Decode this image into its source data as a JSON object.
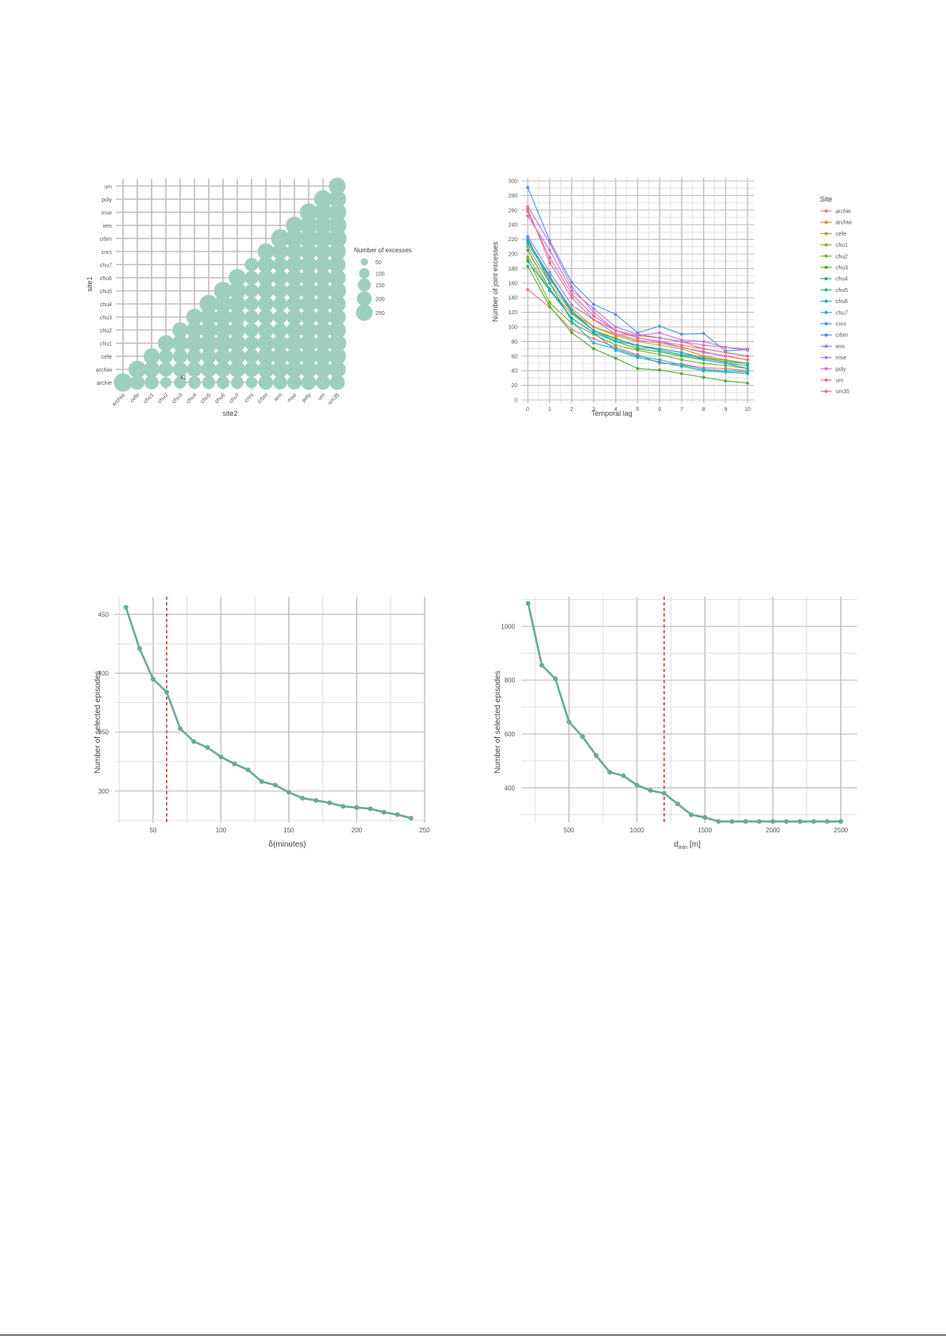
{
  "colors": {
    "teal": "#6aaa96",
    "bubble": "#9ecfbd",
    "grid_major": "#bdbdbd",
    "grid_minor": "#dcdcdc",
    "threshold": "#d23a3a",
    "text": "#555555"
  },
  "chart_data": [
    {
      "type": "scatter",
      "title": "",
      "xlabel": "site2",
      "ylabel": "site1",
      "sites_x": [
        "archiw",
        "cefe",
        "chu1",
        "chu2",
        "chu3",
        "chu4",
        "chu5",
        "chu6",
        "chu7",
        "cnrs",
        "crbm",
        "iem",
        "mse",
        "poly",
        "um",
        "um35"
      ],
      "sites_y": [
        "archie",
        "archiw",
        "cefe",
        "chu1",
        "chu2",
        "chu3",
        "chu4",
        "chu5",
        "chu6",
        "chu7",
        "cnrs",
        "crbm",
        "iem",
        "mse",
        "poly",
        "um"
      ],
      "annotation": "41",
      "legend_title": "Number of excesses",
      "legend_values": [
        50,
        100,
        150,
        200,
        250
      ],
      "grid": true,
      "values": [
        [
          262,
          165,
          150,
          90,
          115,
          120,
          130,
          125,
          120,
          100,
          165,
          150,
          160,
          170,
          160,
          175
        ],
        [
          null,
          232,
          200,
          165,
          168,
          175,
          190,
          190,
          200,
          178,
          212,
          215,
          220,
          222,
          212,
          220
        ],
        [
          null,
          null,
          200,
          155,
          160,
          170,
          178,
          185,
          200,
          165,
          220,
          210,
          220,
          225,
          215,
          230
        ],
        [
          null,
          null,
          null,
          202,
          210,
          225,
          240,
          235,
          215,
          160,
          220,
          200,
          220,
          235,
          205,
          245
        ],
        [
          null,
          null,
          null,
          null,
          188,
          200,
          225,
          210,
          200,
          150,
          185,
          160,
          205,
          210,
          200,
          225
        ],
        [
          null,
          null,
          null,
          null,
          null,
          210,
          228,
          220,
          210,
          150,
          185,
          150,
          190,
          200,
          195,
          220
        ],
        [
          null,
          null,
          null,
          null,
          null,
          null,
          255,
          240,
          215,
          150,
          180,
          160,
          190,
          215,
          200,
          220
        ],
        [
          null,
          null,
          null,
          null,
          null,
          null,
          null,
          252,
          230,
          155,
          205,
          180,
          210,
          225,
          205,
          235
        ],
        [
          null,
          null,
          null,
          null,
          null,
          null,
          null,
          null,
          232,
          150,
          205,
          180,
          210,
          220,
          200,
          220
        ],
        [
          null,
          null,
          null,
          null,
          null,
          null,
          null,
          null,
          null,
          140,
          200,
          170,
          210,
          210,
          195,
          215
        ],
        [
          null,
          null,
          null,
          null,
          null,
          null,
          null,
          null,
          null,
          null,
          210,
          190,
          205,
          215,
          195,
          225
        ],
        [
          null,
          null,
          null,
          null,
          null,
          null,
          null,
          null,
          null,
          null,
          null,
          260,
          255,
          265,
          255,
          265
        ],
        [
          null,
          null,
          null,
          null,
          null,
          null,
          null,
          null,
          null,
          null,
          null,
          null,
          232,
          255,
          240,
          255
        ],
        [
          null,
          null,
          null,
          null,
          null,
          null,
          null,
          null,
          null,
          null,
          null,
          null,
          null,
          245,
          255,
          245
        ],
        [
          null,
          null,
          null,
          null,
          null,
          null,
          null,
          null,
          null,
          null,
          null,
          null,
          null,
          null,
          245,
          235
        ],
        [
          null,
          null,
          null,
          null,
          null,
          null,
          null,
          null,
          null,
          null,
          null,
          null,
          null,
          null,
          null,
          215
        ]
      ]
    },
    {
      "type": "line",
      "title": "",
      "xlabel": "Temporal lag",
      "ylabel": "Number of joint excesses",
      "legend_title": "Site",
      "x": [
        0,
        1,
        2,
        3,
        4,
        5,
        6,
        7,
        8,
        9,
        10
      ],
      "xlim": [
        0,
        10
      ],
      "ylim": [
        0,
        300
      ],
      "yticks": [
        0,
        20,
        40,
        60,
        80,
        100,
        120,
        140,
        160,
        180,
        200,
        220,
        240,
        260,
        280,
        300
      ],
      "grid": true,
      "series": [
        {
          "name": "archie",
          "color": "#e8777b",
          "values": [
            151,
            127,
            96,
            84,
            72,
            62,
            50,
            49,
            44,
            43,
            40
          ]
        },
        {
          "name": "archiw",
          "color": "#dd8a40",
          "values": [
            218,
            165,
            125,
            100,
            90,
            88,
            85,
            80,
            70,
            65,
            60
          ]
        },
        {
          "name": "cefe",
          "color": "#c09a2e",
          "values": [
            210,
            160,
            120,
            100,
            88,
            80,
            75,
            70,
            60,
            55,
            50
          ]
        },
        {
          "name": "chu1",
          "color": "#9faa26",
          "values": [
            196,
            150,
            118,
            95,
            85,
            72,
            70,
            65,
            58,
            54,
            50
          ]
        },
        {
          "name": "chu2",
          "color": "#7ab02c",
          "values": [
            193,
            133,
            105,
            90,
            75,
            68,
            62,
            55,
            50,
            47,
            43
          ]
        },
        {
          "name": "chu3",
          "color": "#52a83c",
          "values": [
            183,
            128,
            92,
            70,
            57,
            43,
            41,
            36,
            31,
            26,
            23
          ]
        },
        {
          "name": "chu4",
          "color": "#2aad63",
          "values": [
            205,
            152,
            112,
            92,
            80,
            70,
            66,
            60,
            55,
            50,
            47
          ]
        },
        {
          "name": "chu5",
          "color": "#1fb28e",
          "values": [
            218,
            170,
            122,
            95,
            83,
            75,
            68,
            62,
            57,
            52,
            50
          ]
        },
        {
          "name": "chu6",
          "color": "#18b0ae",
          "values": [
            190,
            150,
            112,
            92,
            68,
            58,
            52,
            46,
            40,
            38,
            36
          ]
        },
        {
          "name": "chu7",
          "color": "#20acc8",
          "values": [
            222,
            160,
            108,
            78,
            70,
            60,
            55,
            48,
            42,
            40,
            38
          ]
        },
        {
          "name": "cnrs",
          "color": "#30a2dd",
          "values": [
            214,
            168,
            120,
            95,
            80,
            75,
            70,
            65,
            55,
            50,
            43
          ]
        },
        {
          "name": "crbm",
          "color": "#4a92e8",
          "values": [
            291,
            218,
            161,
            131,
            117,
            92,
            101,
            90,
            91,
            67,
            69
          ]
        },
        {
          "name": "iem",
          "color": "#8d82ea",
          "values": [
            224,
            175,
            130,
            110,
            95,
            85,
            80,
            72,
            65,
            60,
            55
          ]
        },
        {
          "name": "mse",
          "color": "#b477e0",
          "values": [
            252,
            205,
            150,
            125,
            100,
            90,
            85,
            80,
            75,
            72,
            68
          ]
        },
        {
          "name": "poly",
          "color": "#d96fcf",
          "values": [
            265,
            215,
            155,
            120,
            95,
            88,
            92,
            82,
            80,
            72,
            70
          ]
        },
        {
          "name": "um",
          "color": "#e26da5",
          "values": [
            258,
            195,
            145,
            115,
            95,
            85,
            80,
            75,
            70,
            65,
            60
          ]
        },
        {
          "name": "um35",
          "color": "#e8708a",
          "values": [
            262,
            188,
            140,
            110,
            90,
            82,
            78,
            72,
            66,
            60,
            55
          ]
        }
      ]
    },
    {
      "type": "line",
      "title": "",
      "xlabel": "δ(minutes)",
      "ylabel": "Number of selected episodes",
      "x": [
        30,
        40,
        50,
        60,
        70,
        80,
        90,
        100,
        110,
        120,
        130,
        140,
        150,
        160,
        170,
        180,
        190,
        200,
        210,
        220,
        230,
        240
      ],
      "values": [
        456,
        421,
        395,
        384,
        353,
        342,
        337,
        329,
        323,
        318,
        308,
        305,
        299,
        294,
        292,
        290,
        287,
        286,
        285,
        282,
        280,
        277
      ],
      "xlim": [
        22,
        250
      ],
      "ylim": [
        273,
        465
      ],
      "xticks": [
        50,
        100,
        150,
        200,
        250
      ],
      "yticks": [
        300,
        350,
        400,
        450
      ],
      "threshold_x": 60,
      "grid": true
    },
    {
      "type": "line",
      "title": "",
      "xlabel_main": "d",
      "xlabel_sub": "min",
      "xlabel_unit": " [m]",
      "ylabel": "Number of selected episodes",
      "x": [
        200,
        300,
        400,
        500,
        600,
        700,
        800,
        900,
        1000,
        1100,
        1200,
        1300,
        1400,
        1500,
        1600,
        1700,
        1800,
        1900,
        2000,
        2100,
        2200,
        2300,
        2400,
        2500
      ],
      "values": [
        1085,
        855,
        805,
        645,
        590,
        520,
        458,
        445,
        410,
        390,
        380,
        340,
        300,
        290,
        275,
        275,
        275,
        275,
        275,
        275,
        275,
        275,
        275,
        275
      ],
      "xlim": [
        150,
        2620
      ],
      "ylim": [
        270,
        1110
      ],
      "xticks": [
        500,
        1000,
        1500,
        2000,
        2500
      ],
      "yticks": [
        400,
        600,
        800,
        1000
      ],
      "threshold_x": 1200,
      "grid": true
    }
  ]
}
